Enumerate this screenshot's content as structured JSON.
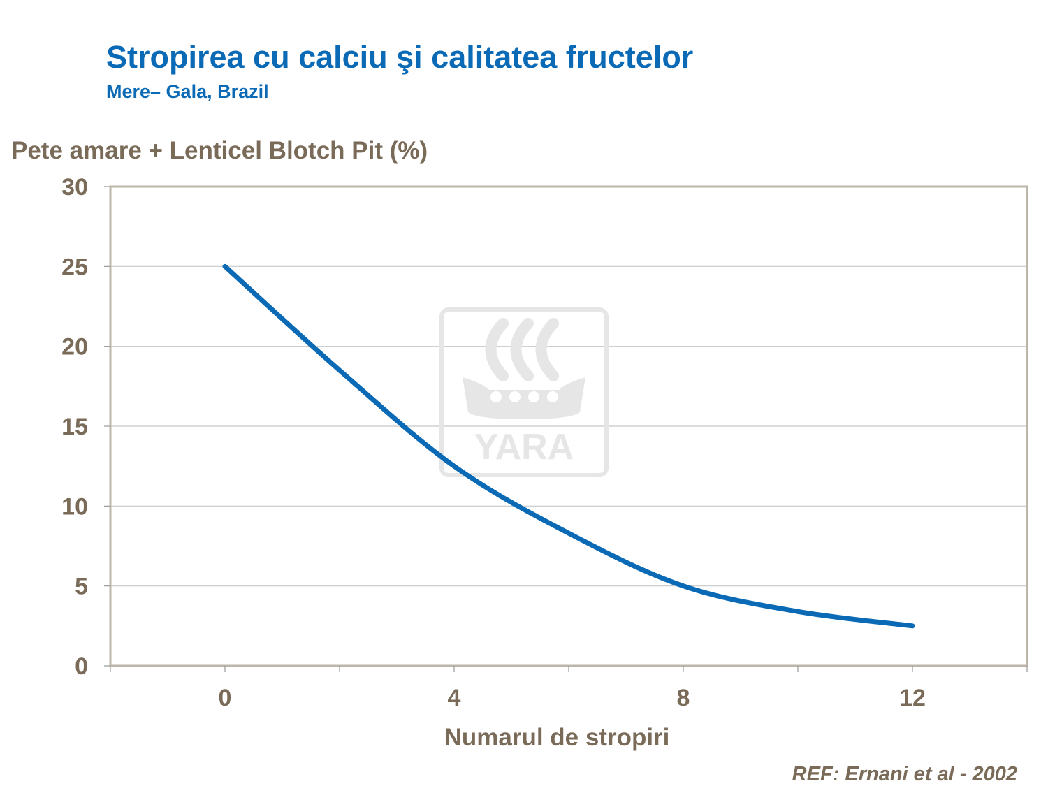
{
  "slide": {
    "title": "Stropirea cu calciu şi calitatea fructelor",
    "subtitle": "Mere– Gala, Brazil",
    "reference": "REF: Ernani et al - 2002",
    "watermark_text": "YARA"
  },
  "colors": {
    "title": "#0a6ab5",
    "text": "#7a6a58",
    "line": "#0a6ab5",
    "frame": "#bdb5aa",
    "grid": "#c8c8c8",
    "watermark": "#e6e6e6"
  },
  "chart_data": {
    "type": "line",
    "ylabel": "Pete amare + Lenticel Blotch Pit (%)",
    "xlabel": "Numarul de stropiri",
    "xlim": [
      -2,
      14
    ],
    "ylim": [
      0,
      30
    ],
    "xticks": [
      0,
      4,
      8,
      12
    ],
    "yticks": [
      0,
      5,
      10,
      15,
      20,
      25,
      30
    ],
    "grid": true,
    "legend": "none",
    "series": [
      {
        "x": [
          0,
          2,
          4,
          6,
          8,
          10,
          12
        ],
        "y": [
          25,
          18.5,
          12.5,
          8.3,
          5,
          3.4,
          2.5
        ]
      }
    ]
  }
}
